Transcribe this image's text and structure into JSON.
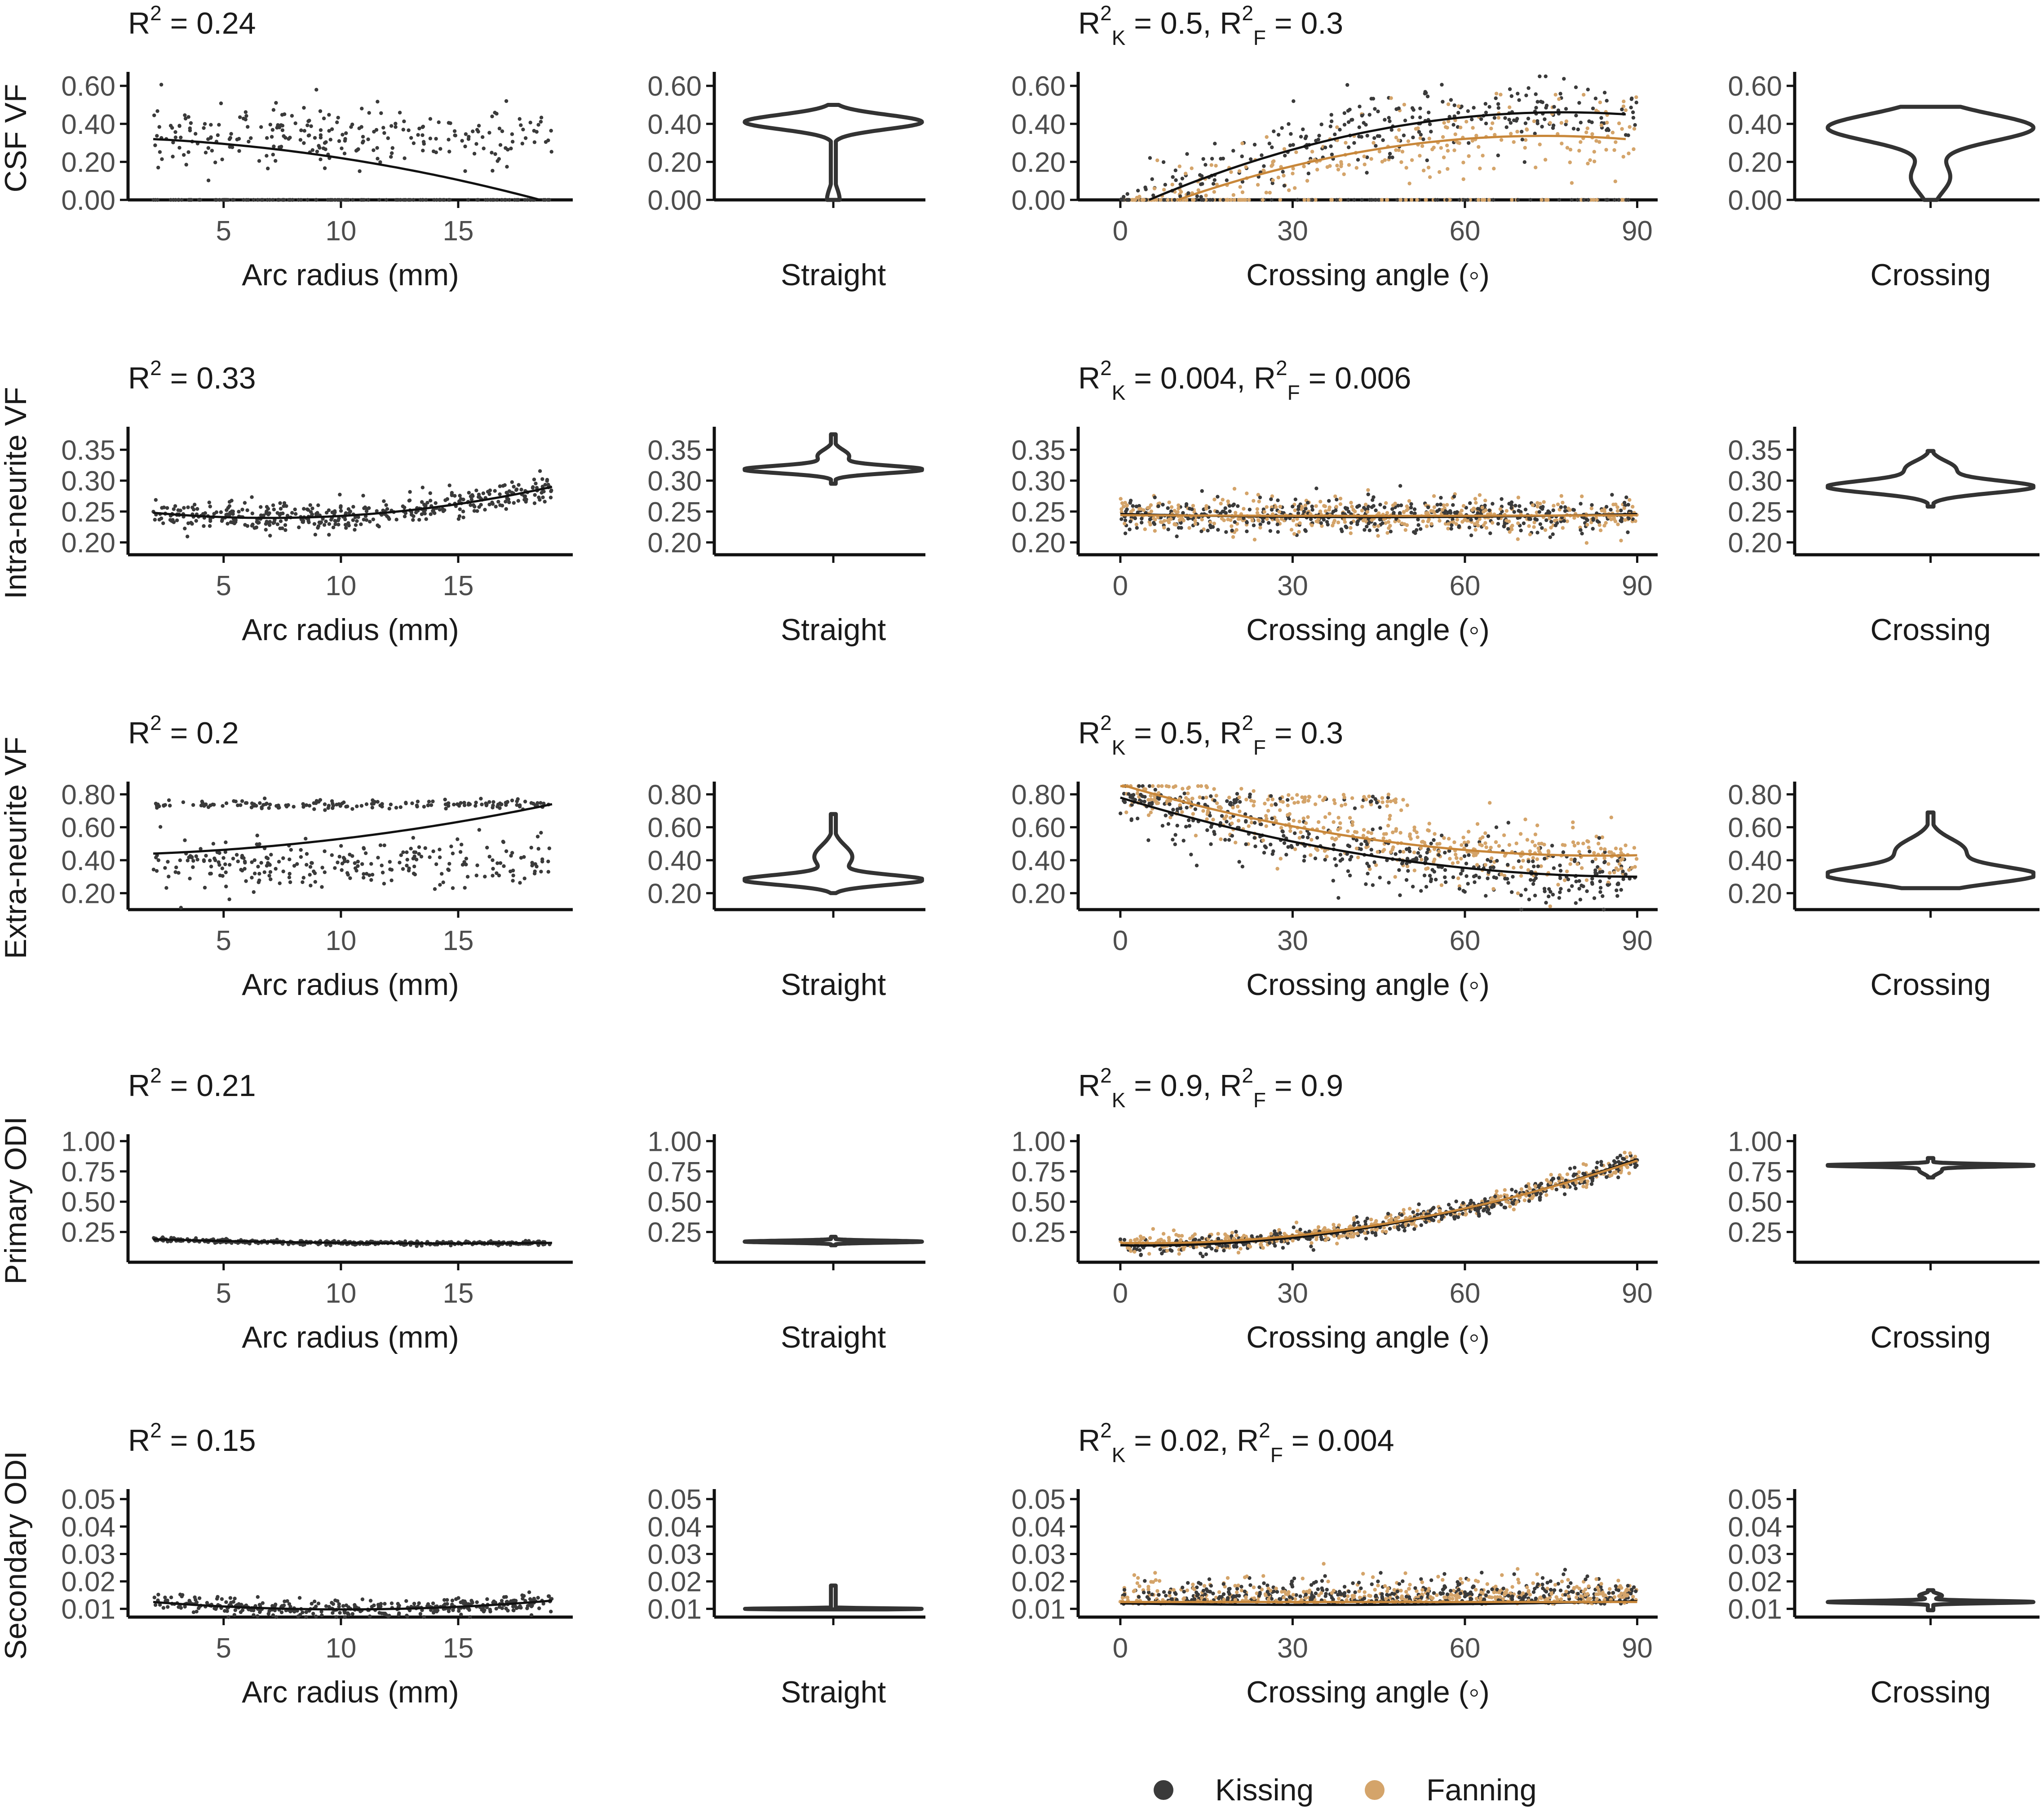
{
  "colors": {
    "kissing": "#3a3a3a",
    "fanning": "#d4a46a",
    "fit_kissing": "#111111",
    "fit_fanning": "#c8873a",
    "violin": "#333333",
    "axis": "#111111"
  },
  "legend": [
    {
      "key": "kissing",
      "label": "Kissing"
    },
    {
      "key": "fanning",
      "label": "Fanning"
    }
  ],
  "chart_data": [
    {
      "type": "scatter",
      "id": "csf-arc",
      "ylabel": "CSF VF",
      "xlabel": "Arc radius (mm)",
      "r2_label": {
        "prefix": "R",
        "sup": "2",
        "rest": " = 0.24"
      },
      "x_range": [
        1.5,
        19.5
      ],
      "x_ticks": [
        5,
        10,
        15
      ],
      "x_tick_labels": [
        "5",
        "10",
        "15"
      ],
      "ylim": [
        0,
        0.65
      ],
      "y_ticks": [
        0,
        0.2,
        0.4,
        0.6
      ],
      "y_tick_labels": [
        "0.00",
        "0.20",
        "0.40",
        "0.60"
      ],
      "fit": {
        "type": "quadratic",
        "points": [
          [
            2,
            0.32
          ],
          [
            10,
            0.22
          ],
          [
            18.5,
            0.0
          ]
        ]
      },
      "scatter_model": {
        "mode": "bimodal",
        "x_from": 2,
        "x_to": 19,
        "hi_mean": 0.33,
        "hi_sd": 0.08,
        "lo_frac": 0.35,
        "n": 380,
        "seed": 11
      }
    },
    {
      "type": "violin",
      "id": "csf-straight",
      "xlabel": "Straight",
      "ylim": [
        0,
        0.65
      ],
      "y_ticks": [
        0,
        0.2,
        0.4,
        0.6
      ],
      "y_tick_labels": [
        "0.00",
        "0.20",
        "0.40",
        "0.60"
      ],
      "y_extent": [
        0.0,
        0.5
      ],
      "max_width": 0.42,
      "modes": [
        {
          "y": 0.41,
          "w": 0.42,
          "s": 0.038
        },
        {
          "y": 0.0,
          "w": 0.03,
          "s": 0.06
        }
      ]
    },
    {
      "type": "scatter",
      "id": "csf-crossing",
      "ylabel": "",
      "xlabel": "Crossing angle (◦)",
      "r2_label": {
        "k": "0.5",
        "f": "0.3"
      },
      "x_range": [
        -5,
        92
      ],
      "x_ticks": [
        0,
        30,
        60,
        90
      ],
      "x_tick_labels": [
        "0",
        "30",
        "60",
        "90"
      ],
      "ylim": [
        0,
        0.65
      ],
      "y_ticks": [
        0,
        0.2,
        0.4,
        0.6
      ],
      "y_tick_labels": [
        "0.00",
        "0.20",
        "0.40",
        "0.60"
      ],
      "fits": [
        {
          "series": "kissing",
          "type": "quadratic",
          "points": [
            [
              5,
              0.0
            ],
            [
              45,
              0.37
            ],
            [
              88,
              0.45
            ]
          ]
        },
        {
          "series": "fanning",
          "type": "quadratic",
          "points": [
            [
              10,
              0.0
            ],
            [
              50,
              0.29
            ],
            [
              88,
              0.32
            ]
          ]
        }
      ],
      "scatter_model": {
        "mode": "crossing-csf",
        "n": 700,
        "seed": 23
      }
    },
    {
      "type": "violin",
      "id": "csf-crossing-violin",
      "xlabel": "Crossing",
      "ylim": [
        0,
        0.65
      ],
      "y_ticks": [
        0,
        0.2,
        0.4,
        0.6
      ],
      "y_tick_labels": [
        "0.00",
        "0.20",
        "0.40",
        "0.60"
      ],
      "y_extent": [
        0.0,
        0.49
      ],
      "max_width": 0.42,
      "modes": [
        {
          "y": 0.38,
          "w": 0.42,
          "s": 0.07
        },
        {
          "y": 0.12,
          "w": 0.08,
          "s": 0.08
        }
      ]
    },
    {
      "type": "scatter",
      "id": "in-arc",
      "ylabel": "Intra-neurite VF",
      "xlabel": "Arc radius (mm)",
      "r2_label": {
        "prefix": "R",
        "sup": "2",
        "rest": " = 0.33"
      },
      "x_range": [
        1.5,
        19.5
      ],
      "x_ticks": [
        5,
        10,
        15
      ],
      "x_tick_labels": [
        "5",
        "10",
        "15"
      ],
      "ylim": [
        0.18,
        0.38
      ],
      "y_ticks": [
        0.2,
        0.25,
        0.3,
        0.35
      ],
      "y_tick_labels": [
        "0.20",
        "0.25",
        "0.30",
        "0.35"
      ],
      "fit": {
        "type": "quadratic",
        "points": [
          [
            2,
            0.248
          ],
          [
            8,
            0.24
          ],
          [
            19,
            0.29
          ]
        ]
      },
      "scatter_model": {
        "mode": "around-fit",
        "x_from": 2,
        "x_to": 19,
        "sd": 0.012,
        "n": 420,
        "seed": 31
      }
    },
    {
      "type": "violin",
      "id": "in-straight",
      "xlabel": "Straight",
      "ylim": [
        0.18,
        0.38
      ],
      "y_ticks": [
        0.2,
        0.25,
        0.3,
        0.35
      ],
      "y_tick_labels": [
        "0.20",
        "0.25",
        "0.30",
        "0.35"
      ],
      "y_extent": [
        0.295,
        0.375
      ],
      "max_width": 0.45,
      "modes": [
        {
          "y": 0.318,
          "w": 0.45,
          "s": 0.006
        },
        {
          "y": 0.34,
          "w": 0.08,
          "s": 0.01
        }
      ]
    },
    {
      "type": "scatter",
      "id": "in-crossing",
      "ylabel": "",
      "xlabel": "Crossing angle (◦)",
      "r2_label": {
        "k": "0.004",
        "f": "0.006"
      },
      "x_range": [
        -5,
        92
      ],
      "x_ticks": [
        0,
        30,
        60,
        90
      ],
      "x_tick_labels": [
        "0",
        "30",
        "60",
        "90"
      ],
      "ylim": [
        0.18,
        0.38
      ],
      "y_ticks": [
        0.2,
        0.25,
        0.3,
        0.35
      ],
      "y_tick_labels": [
        "0.20",
        "0.25",
        "0.30",
        "0.35"
      ],
      "fits": [
        {
          "series": "kissing",
          "type": "quadratic",
          "points": [
            [
              0,
              0.246
            ],
            [
              45,
              0.241
            ],
            [
              90,
              0.246
            ]
          ]
        },
        {
          "series": "fanning",
          "type": "quadratic",
          "points": [
            [
              0,
              0.244
            ],
            [
              45,
              0.243
            ],
            [
              90,
              0.244
            ]
          ]
        }
      ],
      "scatter_model": {
        "mode": "crossing-flat",
        "center": 0.244,
        "sd": 0.014,
        "n": 900,
        "seed": 37
      }
    },
    {
      "type": "violin",
      "id": "in-crossing-violin",
      "xlabel": "Crossing",
      "ylim": [
        0.18,
        0.38
      ],
      "y_ticks": [
        0.2,
        0.25,
        0.3,
        0.35
      ],
      "y_tick_labels": [
        "0.20",
        "0.25",
        "0.30",
        "0.35"
      ],
      "y_extent": [
        0.258,
        0.348
      ],
      "max_width": 0.42,
      "modes": [
        {
          "y": 0.29,
          "w": 0.42,
          "s": 0.01
        },
        {
          "y": 0.32,
          "w": 0.1,
          "s": 0.012
        }
      ]
    },
    {
      "type": "scatter",
      "id": "en-arc",
      "ylabel": "Extra-neurite VF",
      "xlabel": "Arc radius (mm)",
      "r2_label": {
        "prefix": "R",
        "sup": "2",
        "rest": " = 0.2"
      },
      "x_range": [
        1.5,
        19.5
      ],
      "x_ticks": [
        5,
        10,
        15
      ],
      "x_tick_labels": [
        "5",
        "10",
        "15"
      ],
      "ylim": [
        0.1,
        0.85
      ],
      "y_ticks": [
        0.2,
        0.4,
        0.6,
        0.8
      ],
      "y_tick_labels": [
        "0.20",
        "0.40",
        "0.60",
        "0.80"
      ],
      "fit": {
        "type": "quadratic",
        "points": [
          [
            2,
            0.44
          ],
          [
            10,
            0.53
          ],
          [
            19,
            0.74
          ]
        ]
      },
      "scatter_model": {
        "mode": "bimodal-en",
        "x_from": 2,
        "x_to": 19,
        "n": 420,
        "seed": 41
      }
    },
    {
      "type": "violin",
      "id": "en-straight",
      "xlabel": "Straight",
      "ylim": [
        0.1,
        0.85
      ],
      "y_ticks": [
        0.2,
        0.4,
        0.6,
        0.8
      ],
      "y_tick_labels": [
        "0.20",
        "0.40",
        "0.60",
        "0.80"
      ],
      "y_extent": [
        0.2,
        0.68
      ],
      "max_width": 0.42,
      "modes": [
        {
          "y": 0.28,
          "w": 0.42,
          "s": 0.03
        },
        {
          "y": 0.42,
          "w": 0.09,
          "s": 0.07
        }
      ]
    },
    {
      "type": "scatter",
      "id": "en-crossing",
      "ylabel": "",
      "xlabel": "Crossing angle (◦)",
      "r2_label": {
        "k": "0.5",
        "f": "0.3"
      },
      "x_range": [
        -5,
        92
      ],
      "x_ticks": [
        0,
        30,
        60,
        90
      ],
      "x_tick_labels": [
        "0",
        "30",
        "60",
        "90"
      ],
      "ylim": [
        0.1,
        0.85
      ],
      "y_ticks": [
        0.2,
        0.4,
        0.6,
        0.8
      ],
      "y_tick_labels": [
        "0.20",
        "0.40",
        "0.60",
        "0.80"
      ],
      "fits": [
        {
          "series": "kissing",
          "type": "quadratic",
          "points": [
            [
              0,
              0.78
            ],
            [
              45,
              0.42
            ],
            [
              90,
              0.3
            ]
          ]
        },
        {
          "series": "fanning",
          "type": "quadratic",
          "points": [
            [
              0,
              0.86
            ],
            [
              45,
              0.52
            ],
            [
              90,
              0.43
            ]
          ]
        }
      ],
      "scatter_model": {
        "mode": "crossing-en",
        "n": 900,
        "seed": 47
      }
    },
    {
      "type": "violin",
      "id": "en-crossing-violin",
      "xlabel": "Crossing",
      "ylim": [
        0.1,
        0.85
      ],
      "y_ticks": [
        0.2,
        0.4,
        0.6,
        0.8
      ],
      "y_tick_labels": [
        "0.20",
        "0.40",
        "0.60",
        "0.80"
      ],
      "y_extent": [
        0.23,
        0.69
      ],
      "max_width": 0.42,
      "modes": [
        {
          "y": 0.31,
          "w": 0.42,
          "s": 0.05
        },
        {
          "y": 0.46,
          "w": 0.14,
          "s": 0.07
        }
      ]
    },
    {
      "type": "scatter",
      "id": "pod-arc",
      "ylabel": "Primary ODI",
      "xlabel": "Arc radius (mm)",
      "r2_label": {
        "prefix": "R",
        "sup": "2",
        "rest": " = 0.21"
      },
      "x_range": [
        1.5,
        19.5
      ],
      "x_ticks": [
        5,
        10,
        15
      ],
      "x_tick_labels": [
        "5",
        "10",
        "15"
      ],
      "ylim": [
        0.0,
        1.02
      ],
      "y_ticks": [
        0.25,
        0.5,
        0.75,
        1.0
      ],
      "y_tick_labels": [
        "0.25",
        "0.50",
        "0.75",
        "1.00"
      ],
      "fit": {
        "type": "quadratic",
        "points": [
          [
            2,
            0.19
          ],
          [
            10,
            0.16
          ],
          [
            19,
            0.16
          ]
        ]
      },
      "scatter_model": {
        "mode": "around-fit",
        "x_from": 2,
        "x_to": 19,
        "sd": 0.008,
        "n": 420,
        "seed": 53
      }
    },
    {
      "type": "violin",
      "id": "pod-straight",
      "xlabel": "Straight",
      "ylim": [
        0.0,
        1.02
      ],
      "y_ticks": [
        0.25,
        0.5,
        0.75,
        1.0
      ],
      "y_tick_labels": [
        "0.25",
        "0.50",
        "0.75",
        "1.00"
      ],
      "y_extent": [
        0.14,
        0.21
      ],
      "max_width": 0.45,
      "modes": [
        {
          "y": 0.17,
          "w": 0.45,
          "s": 0.008
        }
      ]
    },
    {
      "type": "scatter",
      "id": "pod-crossing",
      "ylabel": "",
      "xlabel": "Crossing angle (◦)",
      "r2_label": {
        "k": "0.9",
        "f": "0.9"
      },
      "x_range": [
        -5,
        92
      ],
      "x_ticks": [
        0,
        30,
        60,
        90
      ],
      "x_tick_labels": [
        "0",
        "30",
        "60",
        "90"
      ],
      "ylim": [
        0.0,
        1.02
      ],
      "y_ticks": [
        0.25,
        0.5,
        0.75,
        1.0
      ],
      "y_tick_labels": [
        "0.25",
        "0.50",
        "0.75",
        "1.00"
      ],
      "fits": [
        {
          "series": "kissing",
          "type": "quadratic",
          "points": [
            [
              0,
              0.14
            ],
            [
              45,
              0.3
            ],
            [
              90,
              0.85
            ]
          ]
        },
        {
          "series": "fanning",
          "type": "quadratic",
          "points": [
            [
              0,
              0.16
            ],
            [
              45,
              0.31
            ],
            [
              90,
              0.84
            ]
          ]
        }
      ],
      "scatter_model": {
        "mode": "crossing-pod",
        "n": 900,
        "seed": 59
      }
    },
    {
      "type": "violin",
      "id": "pod-crossing-violin",
      "xlabel": "Crossing",
      "ylim": [
        0.0,
        1.02
      ],
      "y_ticks": [
        0.25,
        0.5,
        0.75,
        1.0
      ],
      "y_tick_labels": [
        "0.25",
        "0.50",
        "0.75",
        "1.00"
      ],
      "y_extent": [
        0.7,
        0.86
      ],
      "max_width": 0.45,
      "modes": [
        {
          "y": 0.8,
          "w": 0.45,
          "s": 0.01
        },
        {
          "y": 0.76,
          "w": 0.05,
          "s": 0.03
        }
      ]
    },
    {
      "type": "scatter",
      "id": "sod-arc",
      "ylabel": "Secondary ODI",
      "xlabel": "Arc radius (mm)",
      "r2_label": {
        "prefix": "R",
        "sup": "2",
        "rest": " = 0.15"
      },
      "x_range": [
        1.5,
        19.5
      ],
      "x_ticks": [
        5,
        10,
        15
      ],
      "x_tick_labels": [
        "5",
        "10",
        "15"
      ],
      "ylim": [
        0.007,
        0.052
      ],
      "y_ticks": [
        0.01,
        0.02,
        0.03,
        0.04,
        0.05
      ],
      "y_tick_labels": [
        "0.01",
        "0.02",
        "0.03",
        "0.04",
        "0.05"
      ],
      "fit": {
        "type": "quadratic",
        "points": [
          [
            2,
            0.0125
          ],
          [
            10,
            0.0098
          ],
          [
            19,
            0.013
          ]
        ]
      },
      "scatter_model": {
        "mode": "around-fit",
        "x_from": 2,
        "x_to": 19,
        "sd": 0.0015,
        "n": 380,
        "seed": 61
      }
    },
    {
      "type": "violin",
      "id": "sod-straight",
      "xlabel": "Straight",
      "ylim": [
        0.007,
        0.052
      ],
      "y_ticks": [
        0.01,
        0.02,
        0.03,
        0.04,
        0.05
      ],
      "y_tick_labels": [
        "0.01",
        "0.02",
        "0.03",
        "0.04",
        "0.05"
      ],
      "y_extent": [
        0.0098,
        0.0185
      ],
      "max_width": 0.45,
      "modes": [
        {
          "y": 0.01,
          "w": 0.45,
          "s": 0.0002
        }
      ]
    },
    {
      "type": "scatter",
      "id": "sod-crossing",
      "ylabel": "",
      "xlabel": "Crossing angle (◦)",
      "r2_label": {
        "k": "0.02",
        "f": "0.004"
      },
      "x_range": [
        -5,
        92
      ],
      "x_ticks": [
        0,
        30,
        60,
        90
      ],
      "x_tick_labels": [
        "0",
        "30",
        "60",
        "90"
      ],
      "ylim": [
        0.007,
        0.052
      ],
      "y_ticks": [
        0.01,
        0.02,
        0.03,
        0.04,
        0.05
      ],
      "y_tick_labels": [
        "0.01",
        "0.02",
        "0.03",
        "0.04",
        "0.05"
      ],
      "fits": [
        {
          "series": "kissing",
          "type": "quadratic",
          "points": [
            [
              0,
              0.012
            ],
            [
              45,
              0.0115
            ],
            [
              90,
              0.0128
            ]
          ]
        },
        {
          "series": "fanning",
          "type": "quadratic",
          "points": [
            [
              0,
              0.0125
            ],
            [
              45,
              0.0125
            ],
            [
              90,
              0.0125
            ]
          ]
        }
      ],
      "scatter_model": {
        "mode": "crossing-sod",
        "n": 900,
        "seed": 67
      }
    },
    {
      "type": "violin",
      "id": "sod-crossing-violin",
      "xlabel": "Crossing",
      "ylim": [
        0.007,
        0.052
      ],
      "y_ticks": [
        0.01,
        0.02,
        0.03,
        0.04,
        0.05
      ],
      "y_tick_labels": [
        "0.01",
        "0.02",
        "0.03",
        "0.04",
        "0.05"
      ],
      "y_extent": [
        0.0095,
        0.0168
      ],
      "max_width": 0.45,
      "modes": [
        {
          "y": 0.0125,
          "w": 0.45,
          "s": 0.0004
        },
        {
          "y": 0.0148,
          "w": 0.05,
          "s": 0.0008
        }
      ]
    }
  ]
}
